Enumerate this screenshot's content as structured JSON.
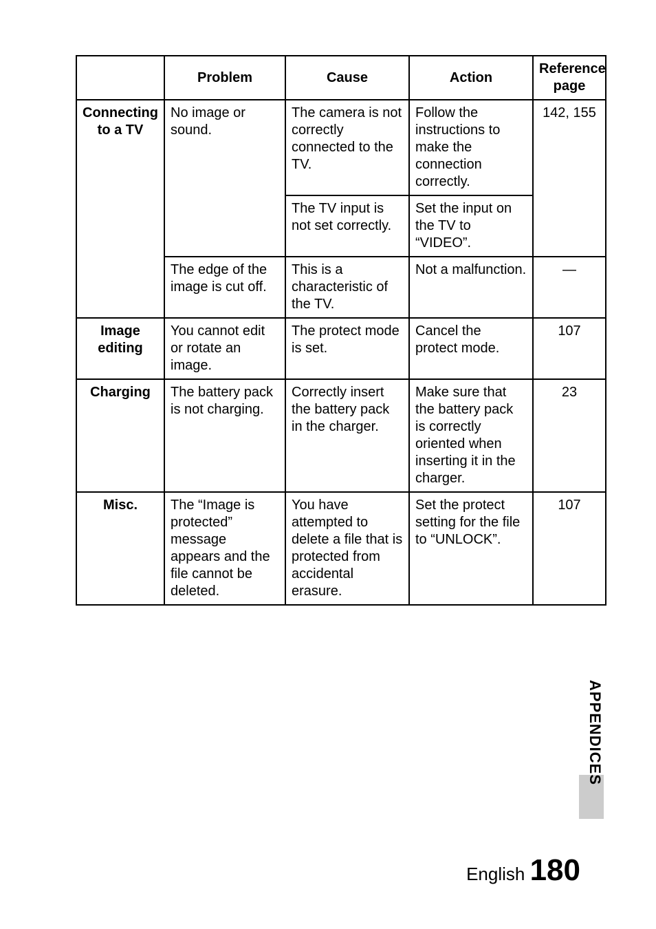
{
  "table": {
    "headers": {
      "category": "",
      "problem": "Problem",
      "cause": "Cause",
      "action": "Action",
      "reference": "Reference page"
    },
    "rows": {
      "tv": {
        "category": "Connecting to a TV",
        "r1": {
          "problem": "No image or sound.",
          "cause": "The camera is not correctly connected to the TV.",
          "action": "Follow the instructions to make the connection correctly.",
          "reference": "142, 155"
        },
        "r2": {
          "cause": "The TV input is not set correctly.",
          "action": "Set the input on the TV to “VIDEO”."
        },
        "r3": {
          "problem": "The edge of the image is cut off.",
          "cause": "This is a characteristic of the TV.",
          "action": "Not a malfunction.",
          "reference": "—"
        }
      },
      "image": {
        "category": "Image editing",
        "r1": {
          "problem": "You cannot edit or rotate an image.",
          "cause": "The protect mode is set.",
          "action": "Cancel the protect mode.",
          "reference": "107"
        }
      },
      "charging": {
        "category": "Charging",
        "r1": {
          "problem": "The battery pack is not charging.",
          "cause": "Correctly insert the battery pack in the charger.",
          "action": "Make sure that the battery pack is correctly oriented when inserting it in the charger.",
          "reference": "23"
        }
      },
      "misc": {
        "category": "Misc.",
        "r1": {
          "problem": "The “Image is protected” message appears and the file cannot be deleted.",
          "cause": "You have attempted to delete a file that is protected from accidental erasure.",
          "action": "Set the protect setting for the file to “UNLOCK”.",
          "reference": "107"
        }
      }
    }
  },
  "sidebar": {
    "label": "APPENDICES"
  },
  "footer": {
    "lang": "English",
    "page": "180"
  }
}
